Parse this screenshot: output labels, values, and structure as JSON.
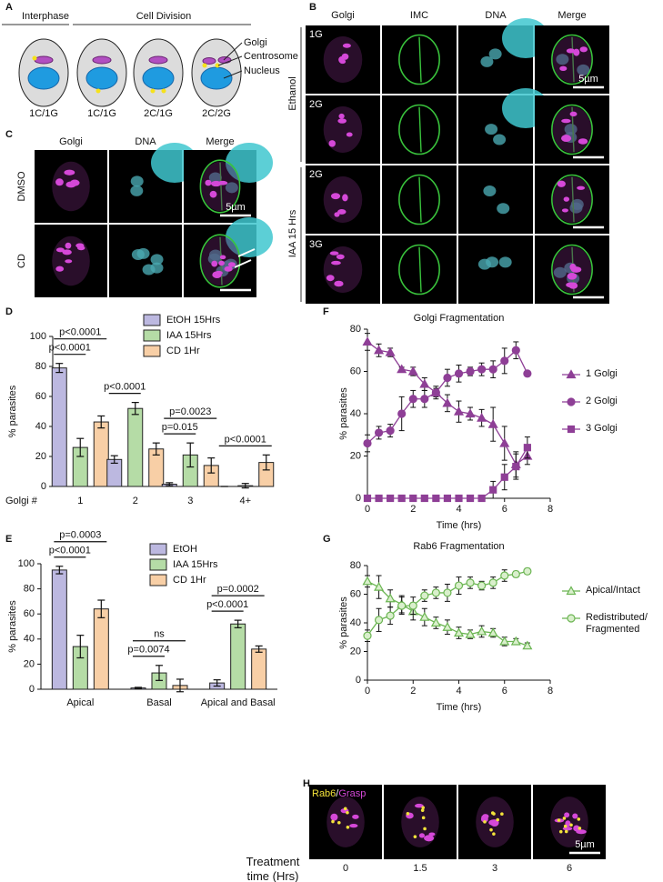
{
  "panel_labels": [
    "A",
    "B",
    "C",
    "D",
    "E",
    "F",
    "G",
    "H"
  ],
  "panel_a": {
    "phases": [
      "Interphase",
      "Cell Division"
    ],
    "parts": [
      "Golgi",
      "Centrosome",
      "Nucleus"
    ],
    "cells": [
      "1C/1G",
      "1C/1G",
      "2C/1G",
      "2C/2G"
    ]
  },
  "panel_b": {
    "columns": [
      "Golgi",
      "IMC",
      "DNA",
      "Merge"
    ],
    "groups": [
      "Ethanol",
      "IAA 15 Hrs"
    ],
    "rows": [
      "1G",
      "2G",
      "2G",
      "3G"
    ],
    "scale_bar": "5µm"
  },
  "panel_c": {
    "columns": [
      "Golgi",
      "DNA",
      "Merge"
    ],
    "rows": [
      "DMSO",
      "CD"
    ],
    "scale_bar": "5µm"
  },
  "panel_h": {
    "channels": [
      "Rab6",
      "/",
      "Grasp"
    ],
    "time_label": "Treatment time (Hrs)",
    "times": [
      "0",
      "1.5",
      "3",
      "6"
    ],
    "scale_bar": "5µm"
  },
  "chart_data": [
    {
      "type": "bar",
      "ylabel": "% parasites",
      "xlabel": "Golgi #",
      "categories": [
        "1",
        "2",
        "3",
        "4+"
      ],
      "series": [
        {
          "name": "EtOH 15Hrs",
          "color": "#bcb8e0",
          "values": [
            79,
            18,
            1.5,
            0
          ],
          "errors": [
            3,
            2.5,
            1,
            0
          ]
        },
        {
          "name": "IAA 15Hrs",
          "color": "#b5dca6",
          "values": [
            26,
            52,
            21,
            0.5
          ],
          "errors": [
            6,
            4,
            8,
            1.5
          ]
        },
        {
          "name": "CD 1Hr",
          "color": "#f8cfa6",
          "values": [
            43,
            25,
            14,
            16
          ],
          "errors": [
            4,
            4,
            5,
            5
          ]
        }
      ],
      "ylim": [
        0,
        100
      ],
      "yticks": [
        0,
        20,
        40,
        60,
        80,
        100
      ],
      "annotations": [
        {
          "text": "p<0.0001",
          "category": 0,
          "pair": [
            0,
            1
          ]
        },
        {
          "text": "p<0.0001",
          "category": 0,
          "pair": [
            0,
            2
          ]
        },
        {
          "text": "p<0.0001",
          "category": 1,
          "pair": [
            0,
            1
          ]
        },
        {
          "text": "p=0.015",
          "category": 2,
          "pair": [
            0,
            1
          ]
        },
        {
          "text": "p=0.0023",
          "category": 2,
          "pair": [
            0,
            2
          ]
        },
        {
          "text": "p<0.0001",
          "category": 3,
          "pair": [
            0,
            2
          ]
        }
      ]
    },
    {
      "type": "bar",
      "ylabel": "% parasites",
      "categories": [
        "Apical",
        "Basal",
        "Apical and Basal"
      ],
      "series": [
        {
          "name": "EtOH",
          "color": "#bcb8e0",
          "values": [
            95,
            1,
            5
          ],
          "errors": [
            3,
            0.5,
            2.5
          ]
        },
        {
          "name": "IAA 15Hrs",
          "color": "#b5dca6",
          "values": [
            34,
            13,
            52
          ],
          "errors": [
            9,
            6,
            3
          ]
        },
        {
          "name": "CD 1Hr",
          "color": "#f8cfa6",
          "values": [
            64,
            3,
            32
          ],
          "errors": [
            7,
            5,
            2.5
          ]
        }
      ],
      "ylim": [
        0,
        100
      ],
      "yticks": [
        0,
        20,
        40,
        60,
        80,
        100
      ],
      "annotations": [
        {
          "text": "p<0.0001",
          "category": 0,
          "pair": [
            0,
            1
          ]
        },
        {
          "text": "p=0.0003",
          "category": 0,
          "pair": [
            0,
            2
          ]
        },
        {
          "text": "p=0.0074",
          "category": 1,
          "pair": [
            0,
            1
          ]
        },
        {
          "text": "ns",
          "category": 1,
          "pair": [
            0,
            2
          ]
        },
        {
          "text": "p<0.0001",
          "category": 2,
          "pair": [
            0,
            1
          ]
        },
        {
          "text": "p=0.0002",
          "category": 2,
          "pair": [
            0,
            2
          ]
        }
      ]
    },
    {
      "type": "line",
      "title": "Golgi Fragmentation",
      "xlabel": "Time (hrs)",
      "ylabel": "% parasites",
      "x": [
        0,
        0.5,
        1,
        1.5,
        2,
        2.5,
        3,
        3.5,
        4,
        4.5,
        5,
        5.5,
        6,
        6.5,
        7
      ],
      "series": [
        {
          "name": "1 Golgi",
          "color": "#8e3f96",
          "marker": "triangle",
          "marker_fill": "#8e3f96",
          "values": [
            74,
            70,
            69,
            61,
            60,
            54,
            50,
            45,
            41,
            40,
            38,
            35,
            26,
            16,
            20
          ],
          "errors": [
            4,
            3,
            2,
            1,
            2,
            3,
            2,
            4,
            5,
            3,
            4,
            8,
            8,
            6,
            4
          ]
        },
        {
          "name": "2 Golgi",
          "color": "#8e3f96",
          "marker": "circle",
          "marker_fill": "#8e3f96",
          "values": [
            26,
            31,
            32,
            40,
            47,
            47,
            50,
            57,
            59,
            60,
            61,
            61,
            65,
            70,
            59
          ],
          "errors": [
            4,
            3,
            3,
            8,
            4,
            4,
            3,
            4,
            4,
            2,
            3,
            4,
            6,
            4,
            0
          ]
        },
        {
          "name": "3 Golgi",
          "color": "#8e3f96",
          "marker": "square",
          "marker_fill": "#8e3f96",
          "values": [
            0,
            0,
            0,
            0,
            0,
            0,
            0,
            0,
            0,
            0,
            0,
            4,
            10,
            15,
            24
          ],
          "errors": [
            0,
            0,
            0,
            0,
            0,
            0,
            0,
            0,
            0,
            0,
            0,
            4,
            6,
            6,
            5
          ]
        }
      ],
      "xlim": [
        0,
        8
      ],
      "xticks": [
        0,
        2,
        4,
        6,
        8
      ],
      "ylim": [
        0,
        80
      ],
      "yticks": [
        0,
        20,
        40,
        60,
        80
      ]
    },
    {
      "type": "line",
      "title": "Rab6 Fragmentation",
      "xlabel": "Time (hrs)",
      "ylabel": "% parasites",
      "x": [
        0,
        0.5,
        1,
        1.5,
        2,
        2.5,
        3,
        3.5,
        4,
        4.5,
        5,
        5.5,
        6,
        6.5,
        7
      ],
      "series": [
        {
          "name": "Apical/Intact",
          "color": "#6bb552",
          "marker": "triangle",
          "marker_fill": "#d9efcc",
          "values": [
            69,
            65,
            57,
            53,
            48,
            44,
            40,
            37,
            33,
            32,
            34,
            33,
            27,
            27,
            24
          ],
          "errors": [
            4,
            8,
            6,
            6,
            6,
            6,
            4,
            5,
            4,
            3,
            4,
            3,
            3,
            2,
            2
          ]
        },
        {
          "name": "Redistributed/ Fragmented",
          "color": "#6bb552",
          "marker": "circle",
          "marker_fill": "#d9efcc",
          "values": [
            31,
            42,
            45,
            52,
            52,
            59,
            61,
            61,
            66,
            68,
            66,
            68,
            73,
            74,
            76
          ],
          "errors": [
            4,
            8,
            6,
            6,
            6,
            4,
            4,
            6,
            6,
            4,
            3,
            4,
            4,
            2,
            2
          ]
        }
      ],
      "xlim": [
        0,
        8
      ],
      "xticks": [
        0,
        2,
        4,
        6,
        8
      ],
      "ylim": [
        0,
        80
      ],
      "yticks": [
        0,
        20,
        40,
        60,
        80
      ]
    }
  ]
}
